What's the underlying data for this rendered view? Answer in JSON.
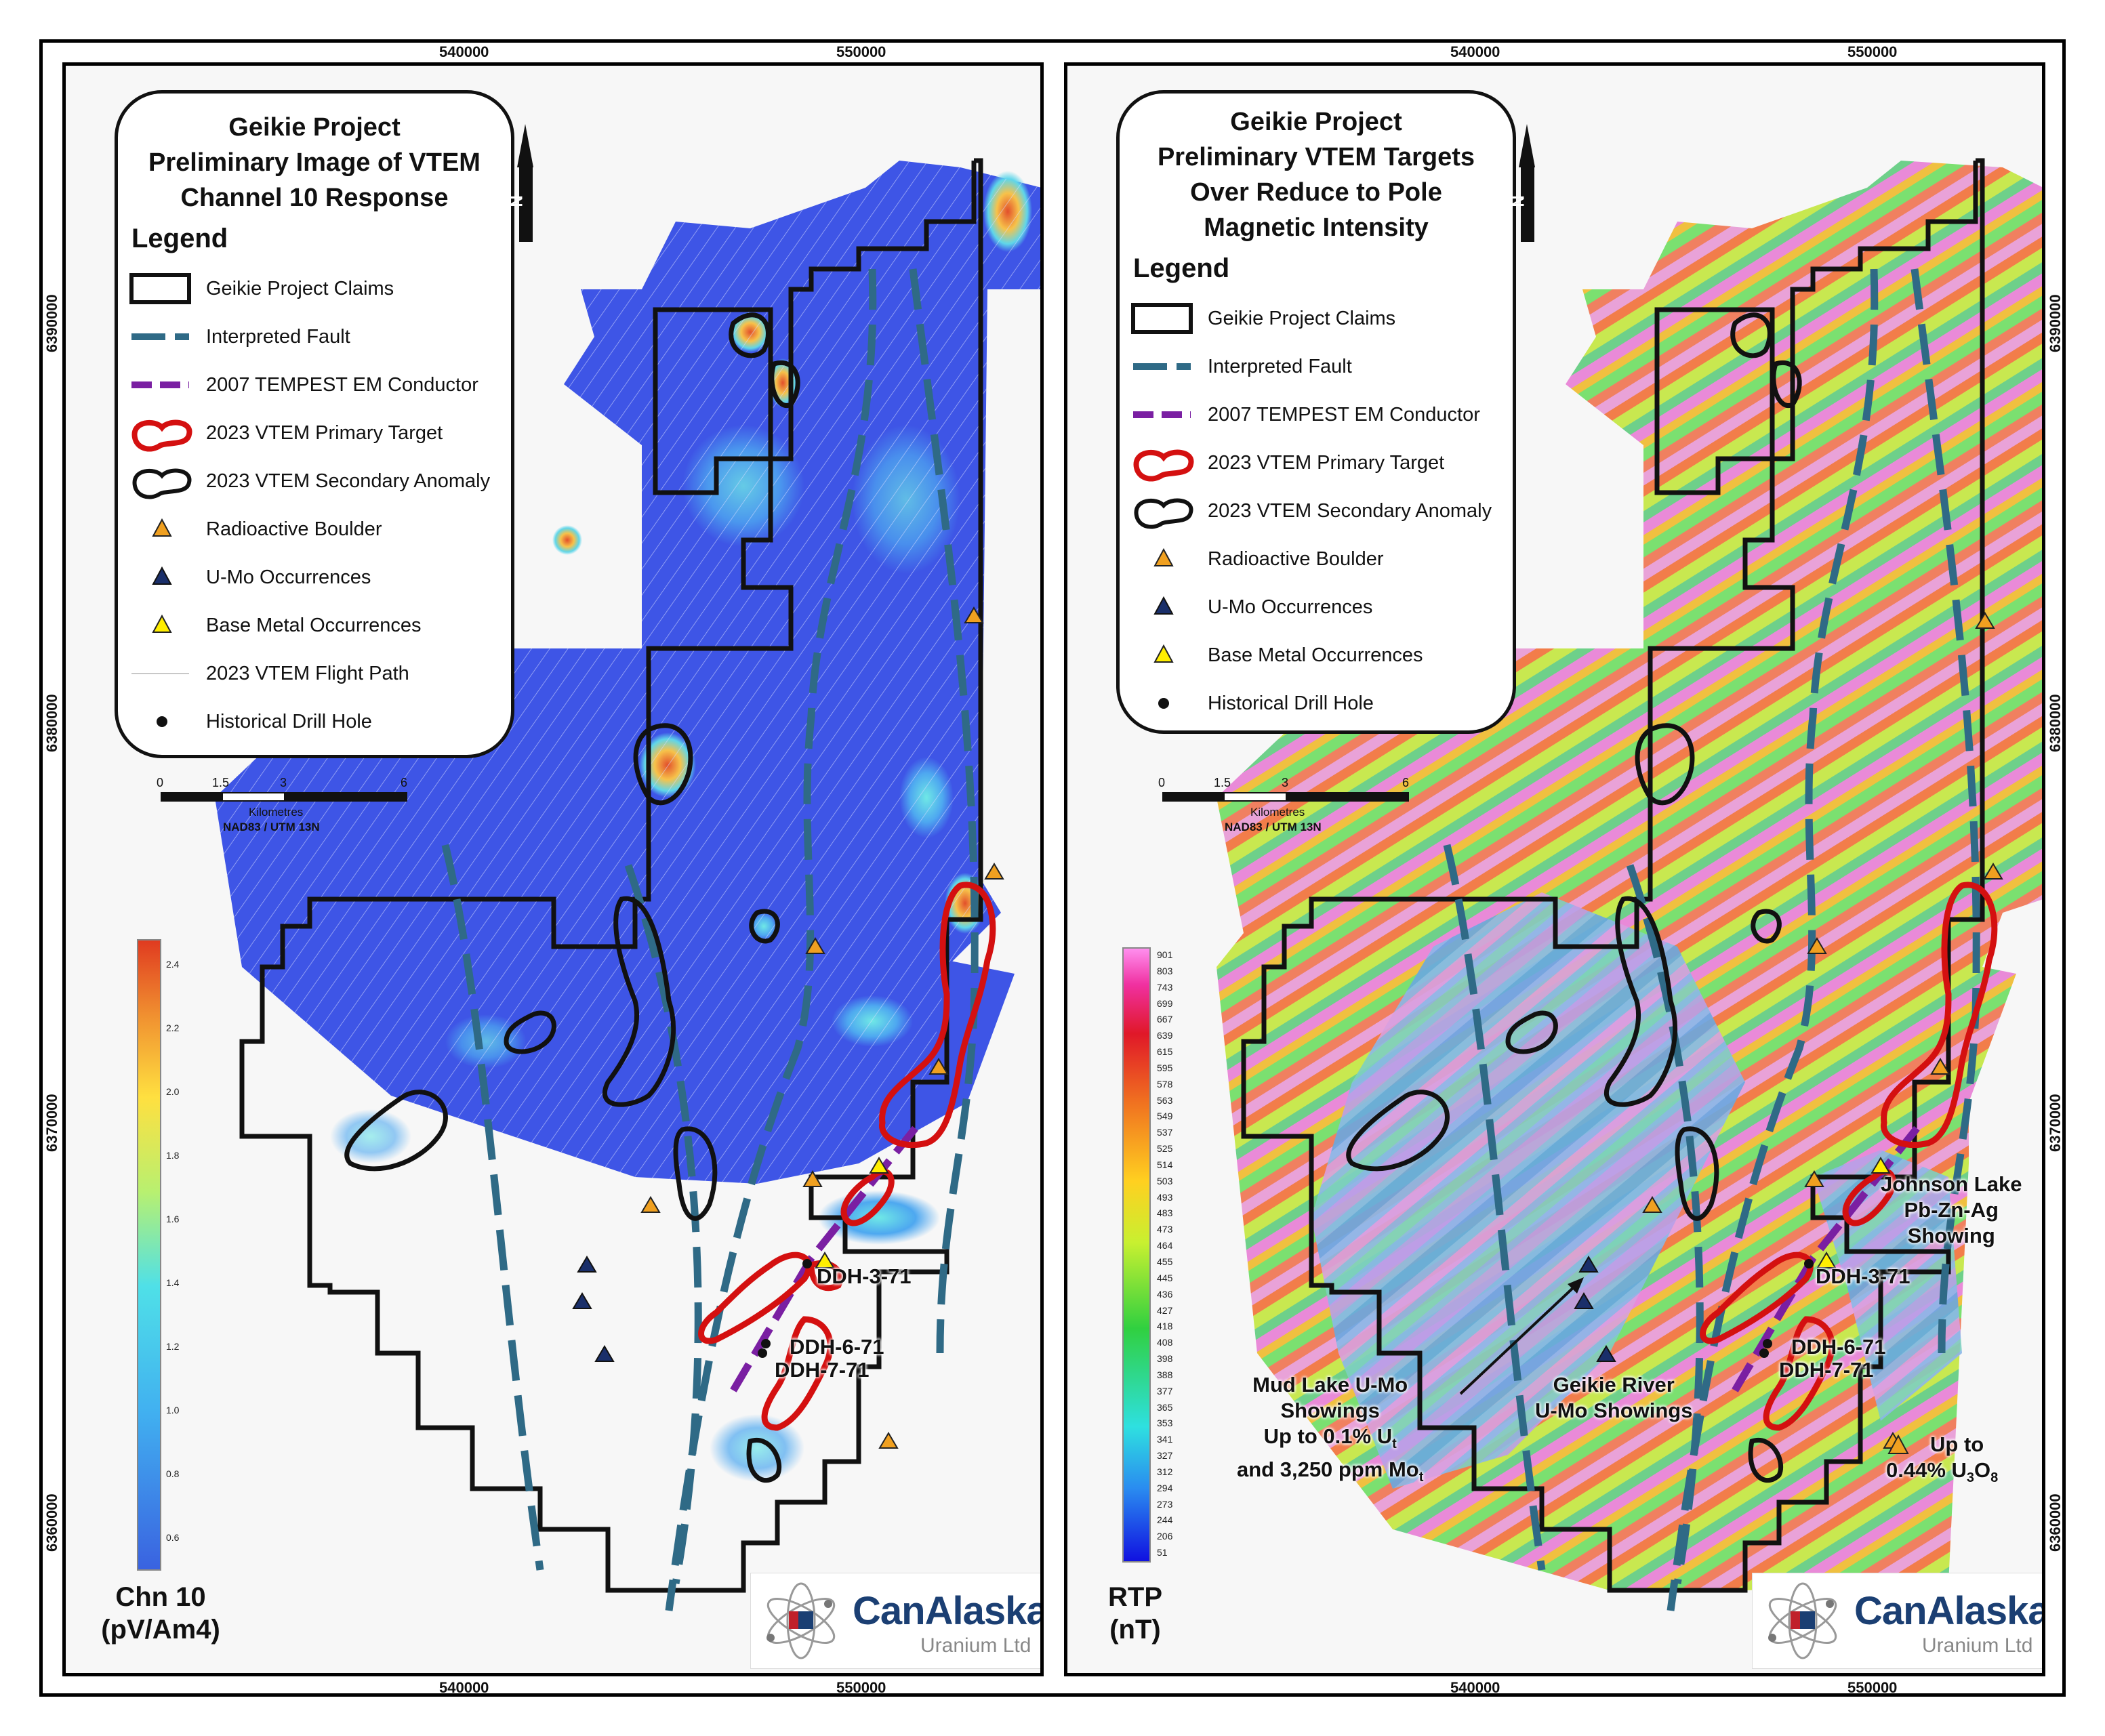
{
  "coords": {
    "east_left": [
      "540000",
      "550000"
    ],
    "east_right": [
      "540000",
      "550000"
    ],
    "north": [
      "6390000",
      "6380000",
      "6370000",
      "6360000"
    ]
  },
  "left": {
    "title": [
      "Geikie Project",
      "Preliminary Image of VTEM",
      "Channel 10 Response"
    ],
    "legend_heading": "Legend",
    "legend": [
      {
        "icon": "claims-box-icon",
        "label": "Geikie Project Claims"
      },
      {
        "icon": "fault-dash-icon",
        "label": "Interpreted Fault"
      },
      {
        "icon": "tempest-dash-icon",
        "label": "2007 TEMPEST EM Conductor"
      },
      {
        "icon": "primary-target-icon",
        "label": "2023 VTEM Primary Target"
      },
      {
        "icon": "secondary-anomaly-icon",
        "label": "2023 VTEM Secondary Anomaly"
      },
      {
        "icon": "orange-triangle-icon",
        "label": "Radioactive Boulder"
      },
      {
        "icon": "navy-triangle-icon",
        "label": "U-Mo Occurrences"
      },
      {
        "icon": "yellow-triangle-icon",
        "label": "Base Metal Occurrences"
      },
      {
        "icon": "flight-path-icon",
        "label": "2023 VTEM Flight Path"
      },
      {
        "icon": "drill-hole-icon",
        "label": "Historical Drill Hole"
      }
    ],
    "scale": {
      "ticks": [
        "0",
        "1.5",
        "3",
        "6"
      ],
      "unit": "Kilometres",
      "crs": "NAD83 / UTM 13N"
    },
    "north_label": "N",
    "colorbar": {
      "ticks": [
        "2.4",
        "2.2",
        "2.0",
        "1.8",
        "1.6",
        "1.4",
        "1.2",
        "1.0",
        "0.8",
        "0.6"
      ],
      "title": [
        "Chn 10",
        "(pV/Am4)"
      ]
    },
    "drill_labels": [
      "DDH-3-71",
      "DDH-6-71",
      "DDH-7-71"
    ],
    "logo": {
      "name": "CanAlaska",
      "sub": "Uranium Ltd"
    }
  },
  "right": {
    "title": [
      "Geikie Project",
      "Preliminary VTEM Targets",
      "Over Reduce to Pole",
      "Magnetic Intensity"
    ],
    "legend_heading": "Legend",
    "legend": [
      {
        "icon": "claims-box-icon",
        "label": "Geikie Project Claims"
      },
      {
        "icon": "fault-dash-icon",
        "label": "Interpreted Fault"
      },
      {
        "icon": "tempest-dash-icon",
        "label": "2007 TEMPEST EM Conductor"
      },
      {
        "icon": "primary-target-icon",
        "label": "2023 VTEM Primary Target"
      },
      {
        "icon": "secondary-anomaly-icon",
        "label": "2023 VTEM Secondary Anomaly"
      },
      {
        "icon": "orange-triangle-icon",
        "label": "Radioactive Boulder"
      },
      {
        "icon": "navy-triangle-icon",
        "label": "U-Mo Occurrences"
      },
      {
        "icon": "yellow-triangle-icon",
        "label": "Base Metal Occurrences"
      },
      {
        "icon": "drill-hole-icon",
        "label": "Historical Drill Hole"
      }
    ],
    "scale": {
      "ticks": [
        "0",
        "1.5",
        "3",
        "6"
      ],
      "unit": "Kilometres",
      "crs": "NAD83 / UTM 13N"
    },
    "north_label": "N",
    "colorbar": {
      "ticks": [
        "901",
        "803",
        "743",
        "699",
        "667",
        "639",
        "615",
        "595",
        "578",
        "563",
        "549",
        "537",
        "525",
        "514",
        "503",
        "493",
        "483",
        "473",
        "464",
        "455",
        "445",
        "436",
        "427",
        "418",
        "408",
        "398",
        "388",
        "377",
        "365",
        "353",
        "341",
        "327",
        "312",
        "294",
        "273",
        "244",
        "206",
        "51"
      ],
      "title": [
        "RTP",
        "(nT)"
      ]
    },
    "drill_labels": [
      "DDH-3-71",
      "DDH-6-71",
      "DDH-7-71"
    ],
    "annotations": {
      "johnson": [
        "Johnson Lake",
        "Pb-Zn-Ag",
        "Showing"
      ],
      "mudlake": [
        "Mud Lake U-Mo",
        "Showings",
        "Up to 0.1% U",
        "and 3,250 ppm Mo"
      ],
      "mudlake_sub": [
        "t",
        "t"
      ],
      "geikie_river": [
        "Geikie River",
        "U-Mo Showings"
      ],
      "upto": [
        "Up to",
        "0.44% U",
        "3",
        "O",
        "8"
      ]
    },
    "logo": {
      "name": "CanAlaska",
      "sub": "Uranium Ltd"
    }
  },
  "colors": {
    "fault": "#2f6a86",
    "tempest": "#7a1fa2",
    "primary": "#d41010",
    "secondary": "#111111",
    "boulder": "#f0a020",
    "umo": "#1a2f6a",
    "basemetal": "#ffee00"
  }
}
